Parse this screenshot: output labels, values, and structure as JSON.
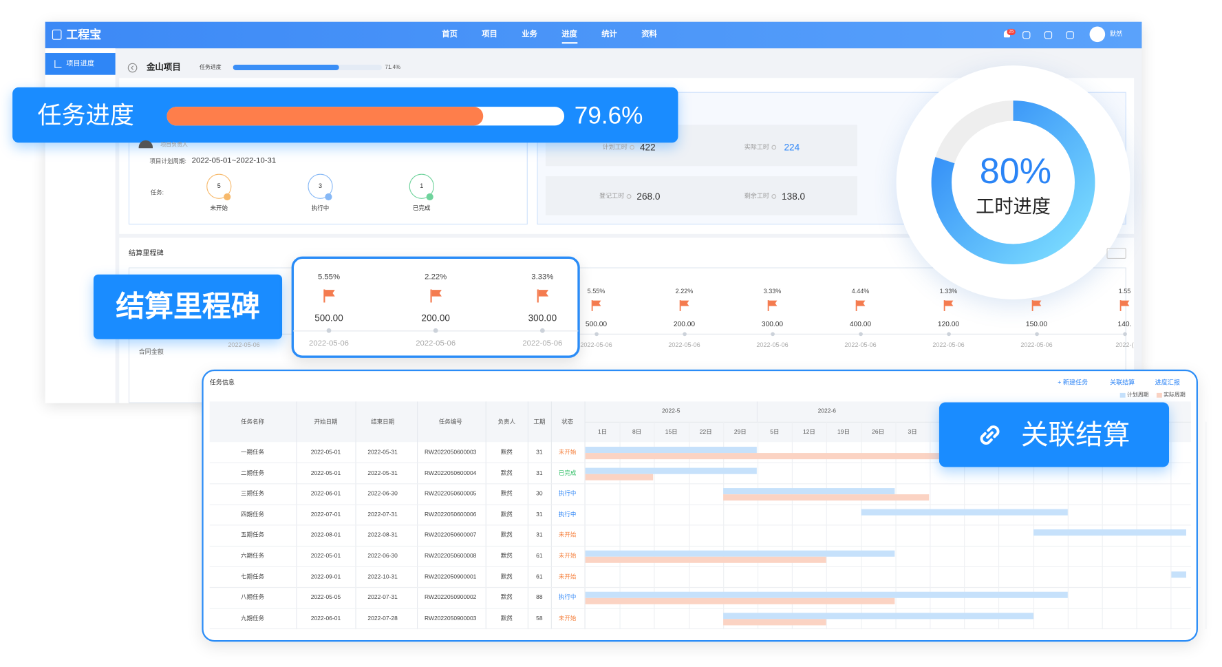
{
  "header": {
    "logo": "工程宝",
    "nav": [
      "首页",
      "项目",
      "业务",
      "进度",
      "统计",
      "资料"
    ],
    "active_nav": 3,
    "badge": "25",
    "user": "默然"
  },
  "sidebar": {
    "items": [
      "项目进度"
    ]
  },
  "project": {
    "name": "金山项目",
    "progress_label": "任务进度",
    "progress": {
      "value": 71.4,
      "label": "71.4%"
    }
  },
  "info": {
    "manager_label": "项目负责人",
    "period_label": "项目计划周期:",
    "period": "2022-05-01~2022-10-31",
    "tasks_label": "任务:",
    "task_status": [
      {
        "count": "5",
        "label": "未开始"
      },
      {
        "count": "3",
        "label": "执行中"
      },
      {
        "count": "1",
        "label": "已完成"
      }
    ]
  },
  "hours": [
    {
      "label": "计划工时",
      "value": "422"
    },
    {
      "label": "实际工时",
      "value": "224"
    },
    {
      "label": "登记工时",
      "value": "268.0"
    },
    {
      "label": "剩余工时",
      "value": "138.0"
    }
  ],
  "milestones": {
    "title": "结算里程碑",
    "row_label": "合同金额",
    "first_date": "2022-05-06",
    "items": [
      {
        "percent": "5.55%",
        "amount": "500.00",
        "date": "2022-05-06"
      },
      {
        "percent": "2.22%",
        "amount": "200.00",
        "date": "2022-05-06"
      },
      {
        "percent": "3.33%",
        "amount": "300.00",
        "date": "2022-05-06"
      },
      {
        "percent": "4.44%",
        "amount": "400.00",
        "date": "2022-05-06"
      },
      {
        "percent": "1.33%",
        "amount": "120.00",
        "date": "2022-05-06"
      },
      {
        "amount": "150.00",
        "date": "2022-05-06"
      },
      {
        "percent": "1.55",
        "amount": "140.",
        "date": "2022-("
      }
    ]
  },
  "milestone_callout": {
    "title": "结算里程碑",
    "items": [
      {
        "percent": "5.55%",
        "amount": "500.00",
        "date": "2022-05-06"
      },
      {
        "percent": "2.22%",
        "amount": "200.00",
        "date": "2022-05-06"
      },
      {
        "percent": "3.33%",
        "amount": "300.00",
        "date": "2022-05-06"
      }
    ]
  },
  "tasks": {
    "title": "任务信息",
    "actions": [
      "+ 新建任务",
      "关联结算",
      "进度汇报"
    ],
    "legend": [
      "计划周期",
      "实际周期"
    ],
    "columns": [
      "任务名称",
      "开始日期",
      "结束日期",
      "任务编号",
      "负责人",
      "工期",
      "状态"
    ],
    "months": [
      "2022-5",
      "2022-6"
    ],
    "days": [
      "1日",
      "8日",
      "15日",
      "22日",
      "29日",
      "5日",
      "12日",
      "19日",
      "26日",
      "3日"
    ],
    "rows": [
      [
        "一期任务",
        "2022-05-01",
        "2022-05-31",
        "RW2022050600003",
        "默然",
        "31",
        "未开始"
      ],
      [
        "二期任务",
        "2022-05-01",
        "2022-05-31",
        "RW2022050600004",
        "默然",
        "31",
        "已完成"
      ],
      [
        "三期任务",
        "2022-06-01",
        "2022-06-30",
        "RW2022050600005",
        "默然",
        "30",
        "执行中"
      ],
      [
        "四期任务",
        "2022-07-01",
        "2022-07-31",
        "RW2022050600006",
        "默然",
        "31",
        "执行中"
      ],
      [
        "五期任务",
        "2022-08-01",
        "2022-08-31",
        "RW2022050600007",
        "默然",
        "31",
        "未开始"
      ],
      [
        "六期任务",
        "2022-05-01",
        "2022-06-30",
        "RW2022050600008",
        "默然",
        "61",
        "未开始"
      ],
      [
        "七期任务",
        "2022-09-01",
        "2022-10-31",
        "RW2022050900001",
        "默然",
        "61",
        "未开始"
      ],
      [
        "八期任务",
        "2022-05-05",
        "2022-07-31",
        "RW2022050900002",
        "默然",
        "88",
        "执行中"
      ],
      [
        "九期任务",
        "2022-06-01",
        "2022-07-28",
        "RW2022050900003",
        "默然",
        "58",
        "未开始"
      ]
    ]
  },
  "callouts": {
    "task_progress": {
      "label": "任务进度",
      "progress": {
        "value": 79.6,
        "label": "79.6%"
      }
    },
    "hours_progress": {
      "progress": {
        "value": 80,
        "label": "80%"
      },
      "label": "工时进度"
    },
    "link": "关联结算"
  }
}
